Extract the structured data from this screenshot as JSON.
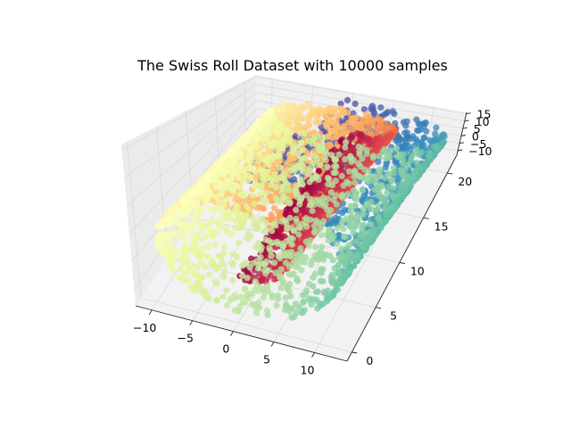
{
  "chart_data": {
    "type": "scatter",
    "projection": "3d",
    "title": "The Swiss Roll Dataset with 10000 samples",
    "n_samples": 10000,
    "colormap": "Spectral",
    "grid": true,
    "xlim": [
      -12,
      14
    ],
    "ylim": [
      -1,
      22
    ],
    "zlim": [
      -13,
      16
    ],
    "xticks": [
      -10,
      -5,
      0,
      5,
      10
    ],
    "xtick_labels": [
      "−10",
      "−5",
      "0",
      "5",
      "10"
    ],
    "yticks": [
      0,
      5,
      10,
      15,
      20
    ],
    "ytick_labels": [
      "0",
      "5",
      "10",
      "15",
      "20"
    ],
    "zticks": [
      -10,
      -5,
      0,
      5,
      10,
      15
    ],
    "ztick_labels": [
      "−10",
      "−5",
      "0",
      "5",
      "10",
      "15"
    ],
    "xlabel": "",
    "ylabel": "",
    "zlabel": "",
    "point_color_scale": [
      "#9e0142",
      "#d53e4f",
      "#f46d43",
      "#fdae61",
      "#fee08b",
      "#ffffbf",
      "#e6f598",
      "#abdda4",
      "#66c2a5",
      "#3288bd",
      "#5e4fa2"
    ],
    "pane_color": "#f2f2f2",
    "grid_color": "#d9d9d9"
  }
}
